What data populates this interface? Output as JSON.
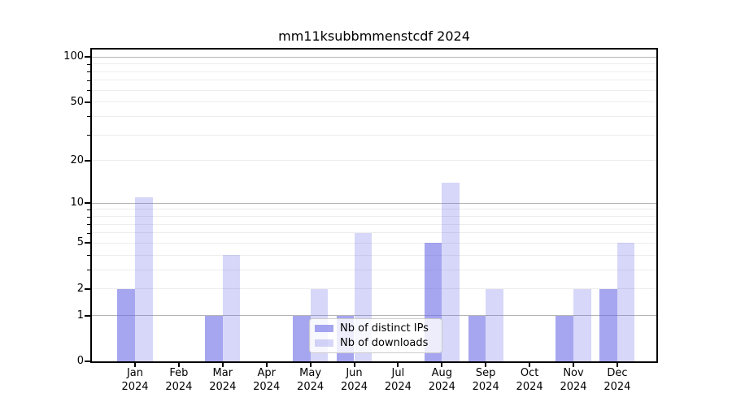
{
  "chart_data": {
    "type": "bar",
    "title": "mm11ksubbmmenstcdf 2024",
    "categories": [
      "Jan",
      "Feb",
      "Mar",
      "Apr",
      "May",
      "Jun",
      "Jul",
      "Aug",
      "Sep",
      "Oct",
      "Nov",
      "Dec"
    ],
    "year_label": "2024",
    "series": [
      {
        "name": "Nb of distinct IPs",
        "values": [
          2,
          0,
          1,
          0,
          1,
          1,
          0,
          5,
          1,
          0,
          1,
          2
        ],
        "color": "rgba(102,102,230,0.58)"
      },
      {
        "name": "Nb of downloads",
        "values": [
          11,
          0,
          4,
          0,
          2,
          6,
          0,
          14,
          2,
          0,
          2,
          5
        ],
        "color": "rgba(102,102,230,0.26)"
      }
    ],
    "yscale": "log1p",
    "ylim": [
      0,
      112
    ],
    "yticks_labeled": [
      0,
      1,
      2,
      5,
      10,
      20,
      50,
      100
    ],
    "yticks_major": [
      1,
      10,
      100
    ],
    "yticks_minor": [
      2,
      3,
      4,
      5,
      6,
      7,
      8,
      9,
      20,
      30,
      40,
      50,
      60,
      70,
      80,
      90
    ],
    "grid": "on",
    "legend_position": "lower center",
    "colors": {
      "bar_base": "#6666e6",
      "grid_major": "#b5b5b5",
      "grid_minor": "#ededed",
      "spine": "#000000",
      "text": "#000000",
      "legend_border": "#cccccc",
      "legend_bg": "rgba(255,255,255,0.8)"
    }
  }
}
